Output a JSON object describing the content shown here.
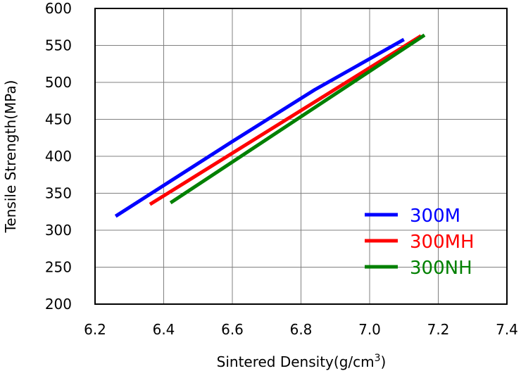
{
  "chart_data": {
    "type": "line",
    "title": "",
    "xlabel": "Sintered Density(g/cm",
    "xlabel_sup": "3",
    "xlabel_end": ")",
    "ylabel": "Tensile Strength(MPa)",
    "xlim": [
      6.2,
      7.4
    ],
    "ylim": [
      200,
      600
    ],
    "xticks": [
      "6.2",
      "6.4",
      "6.6",
      "6.8",
      "7.0",
      "7.2",
      "7.4"
    ],
    "yticks": [
      "200",
      "250",
      "300",
      "350",
      "400",
      "450",
      "500",
      "550",
      "600"
    ],
    "grid": true,
    "legend_position": "bottom-right",
    "series": [
      {
        "name": "300M",
        "color": "#0000ff",
        "x": [
          6.26,
          6.6,
          6.84,
          7.1
        ],
        "y": [
          319,
          420,
          490,
          558
        ]
      },
      {
        "name": "300MH",
        "color": "#ff0000",
        "x": [
          6.36,
          7.15
        ],
        "y": [
          335,
          563
        ]
      },
      {
        "name": "300NH",
        "color": "#008000",
        "x": [
          6.42,
          7.16
        ],
        "y": [
          337,
          564
        ]
      }
    ]
  }
}
